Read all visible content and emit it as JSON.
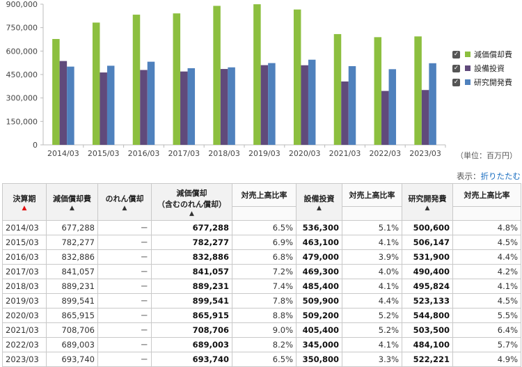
{
  "chart_data": {
    "type": "bar",
    "categories": [
      "2014/03",
      "2015/03",
      "2016/03",
      "2017/03",
      "2018/03",
      "2019/03",
      "2020/03",
      "2021/03",
      "2022/03",
      "2023/03"
    ],
    "series": [
      {
        "name": "減価償却費",
        "color": "#8cbf3f",
        "values": [
          677288,
          782277,
          832886,
          841057,
          889231,
          899541,
          865915,
          708706,
          689003,
          693740
        ]
      },
      {
        "name": "設備投資",
        "color": "#604a7b",
        "values": [
          536300,
          463100,
          479000,
          469300,
          485400,
          509900,
          509200,
          405400,
          345000,
          350800
        ]
      },
      {
        "name": "研究開発費",
        "color": "#4f81bd",
        "values": [
          500600,
          506147,
          531900,
          490400,
          495824,
          523133,
          544800,
          503500,
          484100,
          522221
        ]
      }
    ],
    "ylim": [
      0,
      900000
    ],
    "yticks": [
      "0",
      "150,000",
      "300,000",
      "450,000",
      "600,000",
      "750,000",
      "900,000"
    ],
    "grid": false,
    "legend": "right"
  },
  "legend_items": [
    {
      "label": "減価償却費",
      "color": "#8cbf3f",
      "checked": "✓"
    },
    {
      "label": "設備投資",
      "color": "#604a7b",
      "checked": "✓"
    },
    {
      "label": "研究開発費",
      "color": "#4f81bd",
      "checked": "✓"
    }
  ],
  "unit_label": "（単位：百万円）",
  "display_toggle": {
    "prefix": "表示：",
    "link": "折りたたむ"
  },
  "table": {
    "headers": {
      "period": "決算期",
      "depreciation": "減価償却費",
      "goodwill": "のれん償却",
      "dep_incl_line1": "減価償却",
      "dep_incl_line2": "（含むのれん償却）",
      "ratio": "対売上高比率",
      "capex": "設備投資",
      "rnd": "研究開発費",
      "sort_arrow": "▲"
    },
    "rows": [
      {
        "period": "2014/03",
        "dep": "677,288",
        "gw": "－",
        "dep_incl": "677,288",
        "dep_ratio": "6.5%",
        "capex": "536,300",
        "capex_ratio": "5.1%",
        "rnd": "500,600",
        "rnd_ratio": "4.8%"
      },
      {
        "period": "2015/03",
        "dep": "782,277",
        "gw": "－",
        "dep_incl": "782,277",
        "dep_ratio": "6.9%",
        "capex": "463,100",
        "capex_ratio": "4.1%",
        "rnd": "506,147",
        "rnd_ratio": "4.5%"
      },
      {
        "period": "2016/03",
        "dep": "832,886",
        "gw": "－",
        "dep_incl": "832,886",
        "dep_ratio": "6.8%",
        "capex": "479,000",
        "capex_ratio": "3.9%",
        "rnd": "531,900",
        "rnd_ratio": "4.4%"
      },
      {
        "period": "2017/03",
        "dep": "841,057",
        "gw": "－",
        "dep_incl": "841,057",
        "dep_ratio": "7.2%",
        "capex": "469,300",
        "capex_ratio": "4.0%",
        "rnd": "490,400",
        "rnd_ratio": "4.2%"
      },
      {
        "period": "2018/03",
        "dep": "889,231",
        "gw": "－",
        "dep_incl": "889,231",
        "dep_ratio": "7.4%",
        "capex": "485,400",
        "capex_ratio": "4.1%",
        "rnd": "495,824",
        "rnd_ratio": "4.1%"
      },
      {
        "period": "2019/03",
        "dep": "899,541",
        "gw": "－",
        "dep_incl": "899,541",
        "dep_ratio": "7.8%",
        "capex": "509,900",
        "capex_ratio": "4.4%",
        "rnd": "523,133",
        "rnd_ratio": "4.5%"
      },
      {
        "period": "2020/03",
        "dep": "865,915",
        "gw": "－",
        "dep_incl": "865,915",
        "dep_ratio": "8.8%",
        "capex": "509,200",
        "capex_ratio": "5.2%",
        "rnd": "544,800",
        "rnd_ratio": "5.5%"
      },
      {
        "period": "2021/03",
        "dep": "708,706",
        "gw": "－",
        "dep_incl": "708,706",
        "dep_ratio": "9.0%",
        "capex": "405,400",
        "capex_ratio": "5.2%",
        "rnd": "503,500",
        "rnd_ratio": "6.4%"
      },
      {
        "period": "2022/03",
        "dep": "689,003",
        "gw": "－",
        "dep_incl": "689,003",
        "dep_ratio": "8.2%",
        "capex": "345,000",
        "capex_ratio": "4.1%",
        "rnd": "484,100",
        "rnd_ratio": "5.7%"
      },
      {
        "period": "2023/03",
        "dep": "693,740",
        "gw": "－",
        "dep_incl": "693,740",
        "dep_ratio": "6.5%",
        "capex": "350,800",
        "capex_ratio": "3.3%",
        "rnd": "522,221",
        "rnd_ratio": "4.9%"
      }
    ]
  }
}
